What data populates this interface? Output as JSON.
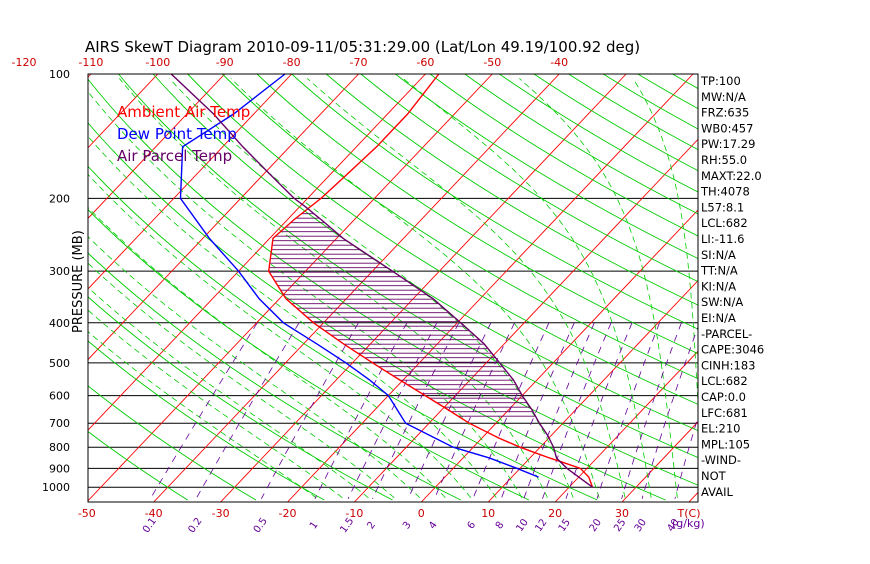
{
  "chart_data": {
    "type": "skew-t",
    "title": "AIRS SkewT Diagram  2010-09-11/05:31:29.00  (Lat/Lon 49.19/100.92 deg)",
    "ylabel": "PRESSURE (MB)",
    "pressure_levels": [
      100,
      200,
      300,
      400,
      500,
      600,
      700,
      800,
      900,
      1000
    ],
    "pressure_range": [
      100,
      1050
    ],
    "top_temp_ticks": [
      "-120",
      "-110",
      "-100",
      "-90",
      "-80",
      "-70",
      "-60",
      "-50",
      "-40"
    ],
    "bottom_temp_ticks": [
      "-50",
      "-40",
      "-30",
      "-20",
      "-10",
      "0",
      "10",
      "20",
      "30"
    ],
    "bottom_temp_unit": "T(C)",
    "mixing_ratio_labels": [
      "0.1",
      "0.2",
      "0.5",
      "1",
      "1.5",
      "2",
      "3",
      "4",
      "6",
      "8",
      "10",
      "12",
      "15",
      "20",
      "25",
      "30",
      "40"
    ],
    "mixing_ratio_unit": "(g/kg)",
    "legend": [
      {
        "name": "Ambient Air Temp",
        "color": "#ff0000"
      },
      {
        "name": "Dew Point Temp",
        "color": "#0000ff"
      },
      {
        "name": "Air Parcel Temp",
        "color": "#660066"
      }
    ],
    "series": [
      {
        "name": "Ambient Air Temp",
        "color": "#ff0000",
        "points": [
          {
            "p": 1000,
            "t": 23.5
          },
          {
            "p": 945,
            "t": 21.5
          },
          {
            "p": 900,
            "t": 19.0
          },
          {
            "p": 870,
            "t": 15.5
          },
          {
            "p": 850,
            "t": 13.0
          },
          {
            "p": 825,
            "t": 10.0
          },
          {
            "p": 800,
            "t": 7.0
          },
          {
            "p": 760,
            "t": 2.5
          },
          {
            "p": 700,
            "t": -4.0
          },
          {
            "p": 650,
            "t": -9.0
          },
          {
            "p": 600,
            "t": -14.5
          },
          {
            "p": 550,
            "t": -20.5
          },
          {
            "p": 500,
            "t": -27.0
          },
          {
            "p": 450,
            "t": -34.0
          },
          {
            "p": 400,
            "t": -41.5
          },
          {
            "p": 350,
            "t": -49.0
          },
          {
            "p": 300,
            "t": -55.5
          },
          {
            "p": 250,
            "t": -59.5
          },
          {
            "p": 225,
            "t": -59.0
          },
          {
            "p": 200,
            "t": -58.0
          },
          {
            "p": 175,
            "t": -57.5
          },
          {
            "p": 150,
            "t": -57.0
          },
          {
            "p": 125,
            "t": -57.0
          },
          {
            "p": 100,
            "t": -58.0
          }
        ]
      },
      {
        "name": "Dew Point Temp",
        "color": "#0000ff",
        "points": [
          {
            "p": 945,
            "t": 14.0
          },
          {
            "p": 900,
            "t": 9.5
          },
          {
            "p": 850,
            "t": 4.0
          },
          {
            "p": 800,
            "t": -3.0
          },
          {
            "p": 700,
            "t": -13.5
          },
          {
            "p": 600,
            "t": -20.0
          },
          {
            "p": 550,
            "t": -25.0
          },
          {
            "p": 500,
            "t": -31.0
          },
          {
            "p": 450,
            "t": -38.0
          },
          {
            "p": 400,
            "t": -46.0
          },
          {
            "p": 350,
            "t": -53.0
          },
          {
            "p": 300,
            "t": -60.0
          },
          {
            "p": 250,
            "t": -69.0
          },
          {
            "p": 200,
            "t": -79.0
          },
          {
            "p": 150,
            "t": -86.0
          },
          {
            "p": 125,
            "t": -83.0
          },
          {
            "p": 100,
            "t": -81.0
          }
        ]
      },
      {
        "name": "Air Parcel Temp",
        "color": "#660066",
        "points": [
          {
            "p": 1000,
            "t": 23.5
          },
          {
            "p": 900,
            "t": 17.0
          },
          {
            "p": 850,
            "t": 14.0
          },
          {
            "p": 800,
            "t": 12.0
          },
          {
            "p": 750,
            "t": 9.5
          },
          {
            "p": 700,
            "t": 6.5
          },
          {
            "p": 650,
            "t": 3.5
          },
          {
            "p": 600,
            "t": 0.0
          },
          {
            "p": 550,
            "t": -3.5
          },
          {
            "p": 500,
            "t": -8.0
          },
          {
            "p": 450,
            "t": -13.0
          },
          {
            "p": 400,
            "t": -19.5
          },
          {
            "p": 350,
            "t": -27.0
          },
          {
            "p": 300,
            "t": -37.0
          },
          {
            "p": 250,
            "t": -49.0
          },
          {
            "p": 225,
            "t": -55.0
          },
          {
            "p": 210,
            "t": -59.0
          },
          {
            "p": 200,
            "t": -62.0
          },
          {
            "p": 175,
            "t": -69.0
          },
          {
            "p": 150,
            "t": -77.0
          },
          {
            "p": 125,
            "t": -86.0
          },
          {
            "p": 100,
            "t": -98.0
          }
        ]
      }
    ],
    "index_panel": [
      "TP:100",
      "MW:N/A",
      "FRZ:635",
      "WB0:457",
      "PW:17.29",
      "RH:55.0",
      "MAXT:22.0",
      "TH:4078",
      "L57:8.1",
      "LCL:682",
      "LI:-11.6",
      "SI:N/A",
      "TT:N/A",
      "KI:N/A",
      "SW:N/A",
      "EI:N/A",
      "-PARCEL-",
      "CAPE:3046",
      "CINH:183",
      "LCL:682",
      "CAP:0.0",
      "LFC:681",
      "EL:210",
      "MPL:105",
      "-WIND-",
      "NOT",
      "AVAIL"
    ],
    "colors": {
      "isotherm": "#ff0000",
      "dry_adiabat": "#00cc00",
      "moist_adiabat": "#00cc00",
      "mixing_ratio": "#660099",
      "isobar": "#000000",
      "cape_hatch": "#660066"
    }
  }
}
